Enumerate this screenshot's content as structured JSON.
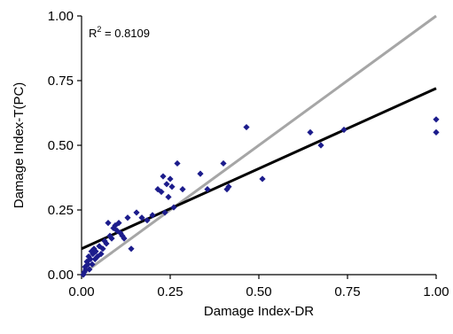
{
  "chart_data": {
    "type": "scatter",
    "title": "",
    "xlabel": "Damage Index-DR",
    "ylabel": "Damage Index-T(PC)",
    "xlim": [
      0,
      1
    ],
    "ylim": [
      0,
      1
    ],
    "x_ticks": [
      "0.00",
      "0.25",
      "0.50",
      "0.75",
      "1.00"
    ],
    "y_ticks": [
      "0.00",
      "0.25",
      "0.50",
      "0.75",
      "1.00"
    ],
    "grid": false,
    "legend": "none",
    "annotation": {
      "r2_label": "R",
      "r2_sup": "2",
      "r2_value": " = 0.8109"
    },
    "colors": {
      "points": "#1c1c8c",
      "fit_line": "#000000",
      "reference_line": "#a6a6a6"
    },
    "reference_line": {
      "x": [
        0,
        1
      ],
      "y": [
        0,
        1
      ]
    },
    "fit_line": {
      "x": [
        0,
        1
      ],
      "y": [
        0.1,
        0.72
      ]
    },
    "points": [
      {
        "x": 0.005,
        "y": 0.0
      },
      {
        "x": 0.008,
        "y": 0.01
      },
      {
        "x": 0.01,
        "y": 0.03
      },
      {
        "x": 0.012,
        "y": 0.02
      },
      {
        "x": 0.015,
        "y": 0.05
      },
      {
        "x": 0.018,
        "y": 0.04
      },
      {
        "x": 0.02,
        "y": 0.07
      },
      {
        "x": 0.022,
        "y": 0.02
      },
      {
        "x": 0.025,
        "y": 0.06
      },
      {
        "x": 0.028,
        "y": 0.09
      },
      {
        "x": 0.03,
        "y": 0.04
      },
      {
        "x": 0.032,
        "y": 0.08
      },
      {
        "x": 0.035,
        "y": 0.1
      },
      {
        "x": 0.038,
        "y": 0.06
      },
      {
        "x": 0.04,
        "y": 0.09
      },
      {
        "x": 0.045,
        "y": 0.07
      },
      {
        "x": 0.05,
        "y": 0.11
      },
      {
        "x": 0.055,
        "y": 0.08
      },
      {
        "x": 0.06,
        "y": 0.1
      },
      {
        "x": 0.065,
        "y": 0.13
      },
      {
        "x": 0.07,
        "y": 0.12
      },
      {
        "x": 0.075,
        "y": 0.2
      },
      {
        "x": 0.08,
        "y": 0.15
      },
      {
        "x": 0.085,
        "y": 0.14
      },
      {
        "x": 0.09,
        "y": 0.18
      },
      {
        "x": 0.095,
        "y": 0.19
      },
      {
        "x": 0.1,
        "y": 0.17
      },
      {
        "x": 0.105,
        "y": 0.2
      },
      {
        "x": 0.11,
        "y": 0.16
      },
      {
        "x": 0.115,
        "y": 0.15
      },
      {
        "x": 0.12,
        "y": 0.14
      },
      {
        "x": 0.13,
        "y": 0.22
      },
      {
        "x": 0.14,
        "y": 0.1
      },
      {
        "x": 0.155,
        "y": 0.24
      },
      {
        "x": 0.17,
        "y": 0.22
      },
      {
        "x": 0.185,
        "y": 0.21
      },
      {
        "x": 0.2,
        "y": 0.23
      },
      {
        "x": 0.215,
        "y": 0.33
      },
      {
        "x": 0.225,
        "y": 0.32
      },
      {
        "x": 0.23,
        "y": 0.38
      },
      {
        "x": 0.235,
        "y": 0.24
      },
      {
        "x": 0.24,
        "y": 0.35
      },
      {
        "x": 0.245,
        "y": 0.3
      },
      {
        "x": 0.25,
        "y": 0.37
      },
      {
        "x": 0.255,
        "y": 0.34
      },
      {
        "x": 0.26,
        "y": 0.26
      },
      {
        "x": 0.27,
        "y": 0.43
      },
      {
        "x": 0.285,
        "y": 0.33
      },
      {
        "x": 0.335,
        "y": 0.39
      },
      {
        "x": 0.355,
        "y": 0.33
      },
      {
        "x": 0.4,
        "y": 0.43
      },
      {
        "x": 0.41,
        "y": 0.33
      },
      {
        "x": 0.415,
        "y": 0.34
      },
      {
        "x": 0.465,
        "y": 0.57
      },
      {
        "x": 0.51,
        "y": 0.37
      },
      {
        "x": 0.645,
        "y": 0.55
      },
      {
        "x": 0.675,
        "y": 0.5
      },
      {
        "x": 0.74,
        "y": 0.56
      },
      {
        "x": 1.0,
        "y": 0.6
      },
      {
        "x": 1.0,
        "y": 0.55
      }
    ]
  }
}
